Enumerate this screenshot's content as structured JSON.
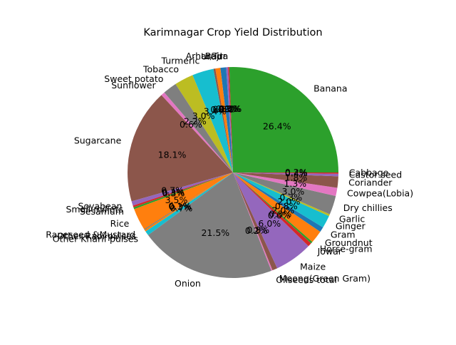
{
  "chart_data": {
    "type": "pie",
    "title": "Karimnagar Crop Yield Distribution",
    "start_angle_deg": 0,
    "counterclock": true,
    "autopct_format": "%1.1f%%",
    "slices": [
      {
        "label": "Banana",
        "value": 26.4,
        "color": "#2ca02c"
      },
      {
        "label": "Bajra",
        "value": 0.2,
        "color": "#d62728"
      },
      {
        "label": "Arhar/Tur",
        "value": 0.3,
        "color": "#9467bd"
      },
      {
        "label": "Urad",
        "value": 0.9,
        "color": "#1f77b4"
      },
      {
        "label": "",
        "value": 0.8,
        "color": "#ff7f0e"
      },
      {
        "label": "",
        "value": 0.3,
        "color": "#8c564b"
      },
      {
        "label": "Turmeric",
        "value": 3.4,
        "color": "#17becf"
      },
      {
        "label": "Tobacco",
        "value": 3.0,
        "color": "#bcbd22"
      },
      {
        "label": "Sweet potato",
        "value": 2.2,
        "color": "#7f7f7f"
      },
      {
        "label": "Sunflower",
        "value": 0.6,
        "color": "#e377c2"
      },
      {
        "label": "Sugarcane",
        "value": 18.1,
        "color": "#8c564b"
      },
      {
        "label": "Soyabean",
        "value": 0.7,
        "color": "#9467bd"
      },
      {
        "label": "Small millets",
        "value": 0.3,
        "color": "#d62728"
      },
      {
        "label": "Sesamum",
        "value": 0.3,
        "color": "#2ca02c"
      },
      {
        "label": "Rice",
        "value": 3.5,
        "color": "#ff7f0e"
      },
      {
        "label": "Rapeseed &Mustard",
        "value": 0.1,
        "color": "#1f77b4"
      },
      {
        "label": "Other Rabi pulses",
        "value": 0.3,
        "color": "#ff7f0e"
      },
      {
        "label": "Other Kharif pulses",
        "value": 0.7,
        "color": "#17becf"
      },
      {
        "label": "Onion",
        "value": 21.5,
        "color": "#7f7f7f"
      },
      {
        "label": "Oilseeds total",
        "value": 0.2,
        "color": "#e377c2"
      },
      {
        "label": "Moong(Green Gram)",
        "value": 0.8,
        "color": "#8c564b"
      },
      {
        "label": "Maize",
        "value": 6.0,
        "color": "#9467bd"
      },
      {
        "label": "Jowar",
        "value": 0.6,
        "color": "#d62728"
      },
      {
        "label": "Horse-gram",
        "value": 0.3,
        "color": "#2ca02c"
      },
      {
        "label": "Groundnut",
        "value": 2.0,
        "color": "#ff7f0e"
      },
      {
        "label": "Gram",
        "value": 0.8,
        "color": "#1f77b4"
      },
      {
        "label": "Ginger",
        "value": 2.0,
        "color": "#17becf"
      },
      {
        "label": "Garlic",
        "value": 0.3,
        "color": "#bcbd22"
      },
      {
        "label": "Dry chillies",
        "value": 3.0,
        "color": "#7f7f7f"
      },
      {
        "label": "Cowpea(Lobia)",
        "value": 1.3,
        "color": "#e377c2"
      },
      {
        "label": "Coriander",
        "value": 1.8,
        "color": "#8c564b"
      },
      {
        "label": "Castor seed",
        "value": 0.4,
        "color": "#9467bd"
      },
      {
        "label": "Cabbage",
        "value": 0.2,
        "color": "#d62728"
      }
    ]
  }
}
